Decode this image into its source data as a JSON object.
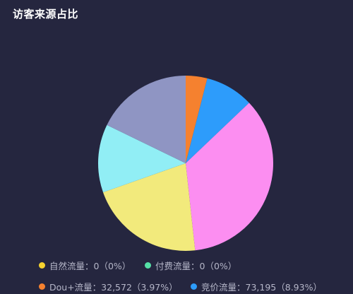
{
  "title": "访客来源占比",
  "chart_data": {
    "type": "pie",
    "title": "访客来源占比",
    "series": [
      {
        "name": "Dou+流量",
        "value": 32572,
        "percent_label": "3.97%",
        "color": "#f5812f"
      },
      {
        "name": "竞价流量",
        "value": 73195,
        "percent_label": "8.93%",
        "color": "#2d9cfb"
      },
      {
        "name": "",
        "value": 290000,
        "color": "#fc8ef1"
      },
      {
        "name": "",
        "value": 175000,
        "color": "#f2ea7c"
      },
      {
        "name": "",
        "value": 103000,
        "color": "#91eef5"
      },
      {
        "name": "",
        "value": 146000,
        "color": "#8f95c3"
      }
    ],
    "legend": [
      {
        "name": "自然流量",
        "value": "0",
        "percent": "0%",
        "color": "#f6d22f"
      },
      {
        "name": "付费流量",
        "value": "0",
        "percent": "0%",
        "color": "#55e0a6"
      },
      {
        "name": "Dou+流量",
        "value": "32,572",
        "percent": "3.97%",
        "color": "#f5812f"
      },
      {
        "name": "竞价流量",
        "value": "73,195",
        "percent": "8.93%",
        "color": "#2d9cfb"
      }
    ],
    "legend_position": "bottom"
  }
}
